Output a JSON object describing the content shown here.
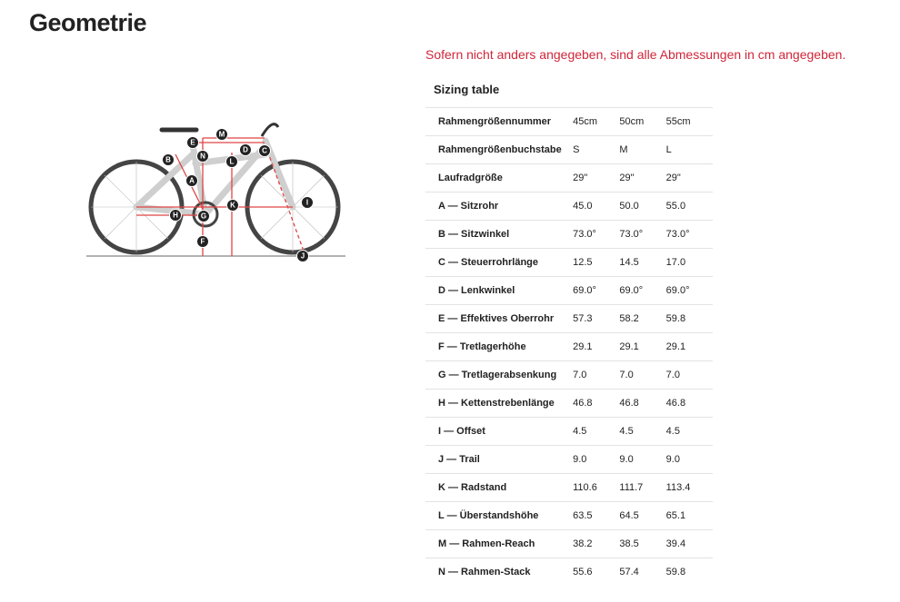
{
  "header": {
    "title": "Geometrie"
  },
  "note": "Sofern nicht anders angegeben, sind alle Abmessungen in cm angegeben.",
  "diagram": {
    "labels": [
      "M",
      "E",
      "N",
      "D",
      "C",
      "B",
      "L",
      "A",
      "K",
      "I",
      "H",
      "G",
      "F",
      "J"
    ]
  },
  "table": {
    "caption": "Sizing table",
    "rows": [
      [
        "Rahmengrößennummer",
        "45cm",
        "50cm",
        "55cm"
      ],
      [
        "Rahmengrößenbuchstabe",
        "S",
        "M",
        "L"
      ],
      [
        "Laufradgröße",
        "29\"",
        "29\"",
        "29\""
      ],
      [
        "A — Sitzrohr",
        "45.0",
        "50.0",
        "55.0"
      ],
      [
        "B — Sitzwinkel",
        "73.0°",
        "73.0°",
        "73.0°"
      ],
      [
        "C — Steuerrohrlänge",
        "12.5",
        "14.5",
        "17.0"
      ],
      [
        "D — Lenkwinkel",
        "69.0°",
        "69.0°",
        "69.0°"
      ],
      [
        "E — Effektives Oberrohr",
        "57.3",
        "58.2",
        "59.8"
      ],
      [
        "F — Tretlagerhöhe",
        "29.1",
        "29.1",
        "29.1"
      ],
      [
        "G — Tretlagerabsenkung",
        "7.0",
        "7.0",
        "7.0"
      ],
      [
        "H — Kettenstrebenlänge",
        "46.8",
        "46.8",
        "46.8"
      ],
      [
        "I — Offset",
        "4.5",
        "4.5",
        "4.5"
      ],
      [
        "J — Trail",
        "9.0",
        "9.0",
        "9.0"
      ],
      [
        "K — Radstand",
        "110.6",
        "111.7",
        "113.4"
      ],
      [
        "L — Überstandshöhe",
        "63.5",
        "64.5",
        "65.1"
      ],
      [
        "M — Rahmen-Reach",
        "38.2",
        "38.5",
        "39.4"
      ],
      [
        "N — Rahmen-Stack",
        "55.6",
        "57.4",
        "59.8"
      ]
    ]
  }
}
